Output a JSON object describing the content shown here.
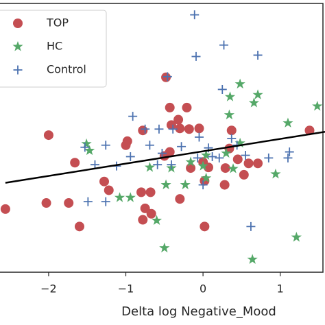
{
  "chart_data": {
    "type": "scatter",
    "xlabel": "Delta log Negative_Mood",
    "xlim": [
      -2.63,
      1.58
    ],
    "ylim": [
      -2,
      2
    ],
    "xticks": [
      {
        "value": -2,
        "label": "−2"
      },
      {
        "value": -1,
        "label": "−1"
      },
      0,
      1
    ],
    "legend": "upper left",
    "series": [
      {
        "name": "TOP",
        "color": "#c44e52",
        "marker": "o",
        "x": [
          -0.48,
          -2.0,
          -0.43,
          -0.21,
          -0.32,
          -0.78,
          -0.3,
          -0.98,
          -1.0,
          -0.05,
          0.37,
          1.38,
          0.34,
          0.45,
          0.71,
          -1.66,
          -0.43,
          -0.5,
          0.0,
          0.07,
          -0.16,
          0.29,
          0.59,
          -1.28,
          -1.22,
          -0.8,
          -0.68,
          -0.3,
          -2.03,
          -1.74,
          -2.56,
          -0.75,
          0.28,
          0.02,
          -0.78,
          -0.67,
          -1.6,
          0.02,
          0.53,
          -0.18,
          -0.41
        ],
        "y": [
          0.9,
          0.04,
          0.45,
          0.45,
          0.27,
          0.11,
          0.14,
          -0.05,
          -0.11,
          0.14,
          0.11,
          0.11,
          -0.16,
          -0.32,
          -0.38,
          -0.37,
          -0.21,
          -0.27,
          -0.36,
          -0.44,
          -0.45,
          -0.45,
          -0.38,
          -0.65,
          -0.78,
          -0.81,
          -0.81,
          -0.91,
          -0.97,
          -0.97,
          -1.06,
          -1.05,
          -0.7,
          -0.64,
          -1.22,
          -1.13,
          -1.32,
          -1.32,
          -0.55,
          0.13,
          0.19
        ]
      },
      {
        "name": "HC",
        "color": "#55a868",
        "marker": "*",
        "x": [
          0.48,
          0.71,
          0.35,
          0.66,
          1.48,
          0.34,
          1.1,
          0.48,
          -1.51,
          -1.47,
          0.3,
          -0.69,
          -0.41,
          0.04,
          0.0,
          0.39,
          0.94,
          -0.48,
          -0.23,
          0.04,
          -1.08,
          -0.94,
          -0.6,
          -0.5,
          0.64,
          1.21,
          -0.16
        ],
        "y": [
          0.8,
          0.64,
          0.61,
          0.52,
          0.47,
          0.34,
          0.22,
          -0.08,
          -0.09,
          -0.19,
          -0.23,
          -0.44,
          -0.45,
          -0.26,
          -0.42,
          -0.46,
          -0.54,
          -0.7,
          -0.7,
          -0.6,
          -0.89,
          -0.89,
          -1.23,
          -1.64,
          -1.81,
          -1.48,
          -0.36
        ]
      },
      {
        "name": "Control",
        "color": "#4c72b0",
        "marker": "+",
        "x": [
          -0.11,
          0.27,
          -0.09,
          0.71,
          -0.46,
          0.25,
          -0.91,
          -0.75,
          -0.57,
          -0.39,
          -0.05,
          -0.28,
          0.07,
          0.37,
          -1.26,
          -1.53,
          -0.69,
          -0.53,
          -0.07,
          0.12,
          0.44,
          0.85,
          1.1,
          1.12,
          -1.4,
          -0.59,
          -0.41,
          0.21,
          0.55,
          -1.12,
          0.0,
          -1.49,
          -1.26,
          0.62,
          -0.94
        ],
        "y": [
          1.83,
          1.38,
          1.21,
          1.23,
          0.91,
          0.72,
          0.32,
          0.13,
          0.13,
          0.13,
          0.01,
          -0.13,
          -0.15,
          -0.01,
          -0.11,
          -0.14,
          -0.11,
          -0.23,
          -0.3,
          -0.28,
          -0.11,
          -0.3,
          -0.3,
          -0.21,
          -0.4,
          -0.4,
          -0.4,
          -0.3,
          -0.26,
          -0.42,
          -0.7,
          -0.95,
          -0.95,
          -1.32,
          -0.28
        ]
      }
    ],
    "fit_line": {
      "color": "#000000",
      "x": [
        -2.56,
        1.58
      ],
      "y": [
        -0.67,
        0.09
      ]
    }
  }
}
